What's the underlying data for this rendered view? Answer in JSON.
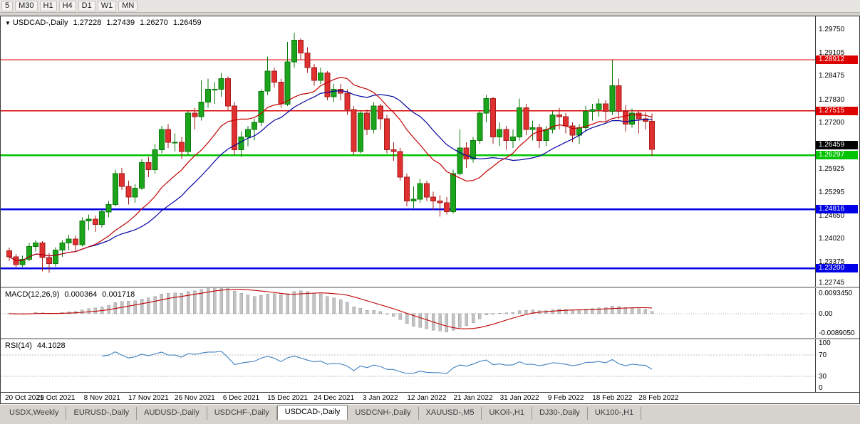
{
  "toolbar": {
    "timeframes": [
      "5",
      "M30",
      "H1",
      "H4",
      "D1",
      "W1",
      "MN"
    ]
  },
  "price_chart": {
    "collapse_icon": "▼",
    "symbol_title": "USDCAD-,Daily",
    "ohlc": {
      "open": "1.27228",
      "high": "1.27439",
      "low": "1.26270",
      "close": "1.26459"
    },
    "axis_labels": [
      "1.29750",
      "1.29105",
      "1.28475",
      "1.27830",
      "1.27200",
      "1.26570",
      "1.25925",
      "1.25295",
      "1.24650",
      "1.24020",
      "1.23375",
      "1.22745"
    ],
    "range": {
      "min": 1.227,
      "max": 1.301
    },
    "levels": [
      {
        "price": 1.28912,
        "label": "1.28912",
        "color": "#dd0000",
        "thickness": 1.4
      },
      {
        "price": 1.27515,
        "label": "1.27515",
        "color": "#dd0000",
        "thickness": 1.4
      },
      {
        "price": 1.26297,
        "label": "1.26297",
        "color": "#00c400",
        "thickness": 2.6
      },
      {
        "price": 1.24816,
        "label": "1.24816",
        "color": "#0000e6",
        "thickness": 2.2
      },
      {
        "price": 1.232,
        "label": "1.23200",
        "color": "#0000e6",
        "thickness": 2.2
      }
    ],
    "bid": {
      "price": 1.26459,
      "label": "1.26459",
      "bg": "#000000"
    },
    "colors": {
      "up": "#1ca41c",
      "up_border": "#0b7a0b",
      "down": "#e03030",
      "down_border": "#a51c1c",
      "ma_fast": "#c00000",
      "ma_slow": "#0000a0"
    },
    "ma_fast_period": 13,
    "ma_slow_period": 21,
    "candles": [
      [
        1.2368,
        1.2377,
        1.234,
        1.2352
      ],
      [
        1.2352,
        1.236,
        1.2322,
        1.233
      ],
      [
        1.233,
        1.2355,
        1.2324,
        1.2345
      ],
      [
        1.2345,
        1.239,
        1.234,
        1.238
      ],
      [
        1.238,
        1.2398,
        1.2366,
        1.239
      ],
      [
        1.239,
        1.2395,
        1.2312,
        1.235
      ],
      [
        1.235,
        1.2362,
        1.2308,
        1.2333
      ],
      [
        1.2333,
        1.2378,
        1.2325,
        1.237
      ],
      [
        1.237,
        1.2398,
        1.2352,
        1.239
      ],
      [
        1.239,
        1.2412,
        1.237,
        1.24
      ],
      [
        1.24,
        1.241,
        1.2368,
        1.2385
      ],
      [
        1.2385,
        1.246,
        1.238,
        1.245
      ],
      [
        1.245,
        1.2468,
        1.2425,
        1.2455
      ],
      [
        1.2455,
        1.2465,
        1.242,
        1.244
      ],
      [
        1.244,
        1.248,
        1.2432,
        1.2475
      ],
      [
        1.2475,
        1.2505,
        1.246,
        1.2495
      ],
      [
        1.2495,
        1.259,
        1.249,
        1.258
      ],
      [
        1.258,
        1.2595,
        1.2535,
        1.2545
      ],
      [
        1.2545,
        1.256,
        1.2495,
        1.2515
      ],
      [
        1.2515,
        1.255,
        1.25,
        1.254
      ],
      [
        1.254,
        1.262,
        1.2535,
        1.261
      ],
      [
        1.261,
        1.2625,
        1.257,
        1.259
      ],
      [
        1.259,
        1.266,
        1.258,
        1.2645
      ],
      [
        1.2645,
        1.271,
        1.2635,
        1.27
      ],
      [
        1.27,
        1.2715,
        1.265,
        1.2665
      ],
      [
        1.2665,
        1.269,
        1.264,
        1.2665
      ],
      [
        1.2665,
        1.268,
        1.262,
        1.264
      ],
      [
        1.264,
        1.275,
        1.263,
        1.2745
      ],
      [
        1.2745,
        1.276,
        1.27,
        1.2735
      ],
      [
        1.2735,
        1.2835,
        1.2725,
        1.2775
      ],
      [
        1.2775,
        1.284,
        1.276,
        1.281
      ],
      [
        1.281,
        1.283,
        1.277,
        1.281
      ],
      [
        1.281,
        1.2855,
        1.279,
        1.284
      ],
      [
        1.284,
        1.2845,
        1.275,
        1.2765
      ],
      [
        1.2765,
        1.2775,
        1.263,
        1.2645
      ],
      [
        1.2645,
        1.2695,
        1.2625,
        1.268
      ],
      [
        1.268,
        1.271,
        1.2655,
        1.27
      ],
      [
        1.27,
        1.273,
        1.267,
        1.272
      ],
      [
        1.272,
        1.281,
        1.271,
        1.2805
      ],
      [
        1.2805,
        1.29,
        1.2795,
        1.286
      ],
      [
        1.286,
        1.287,
        1.2815,
        1.283
      ],
      [
        1.283,
        1.284,
        1.276,
        1.277
      ],
      [
        1.277,
        1.294,
        1.2765,
        1.2885
      ],
      [
        1.2885,
        1.2965,
        1.287,
        1.2945
      ],
      [
        1.2945,
        1.295,
        1.289,
        1.291
      ],
      [
        1.291,
        1.2925,
        1.2855,
        1.287
      ],
      [
        1.287,
        1.288,
        1.282,
        1.2835
      ],
      [
        1.2835,
        1.287,
        1.2825,
        1.2855
      ],
      [
        1.2855,
        1.286,
        1.278,
        1.279
      ],
      [
        1.279,
        1.2825,
        1.2775,
        1.281
      ],
      [
        1.281,
        1.2825,
        1.278,
        1.28
      ],
      [
        1.28,
        1.281,
        1.274,
        1.2755
      ],
      [
        1.2755,
        1.2765,
        1.263,
        1.264
      ],
      [
        1.264,
        1.275,
        1.2635,
        1.2745
      ],
      [
        1.2745,
        1.2755,
        1.2685,
        1.27
      ],
      [
        1.27,
        1.2775,
        1.269,
        1.2765
      ],
      [
        1.2765,
        1.277,
        1.27,
        1.273
      ],
      [
        1.273,
        1.274,
        1.2635,
        1.2645
      ],
      [
        1.2645,
        1.2665,
        1.2615,
        1.264
      ],
      [
        1.264,
        1.265,
        1.256,
        1.257
      ],
      [
        1.257,
        1.258,
        1.249,
        1.2505
      ],
      [
        1.2505,
        1.2545,
        1.2485,
        1.251
      ],
      [
        1.251,
        1.2565,
        1.25,
        1.2552
      ],
      [
        1.2552,
        1.256,
        1.2505,
        1.2515
      ],
      [
        1.2515,
        1.253,
        1.248,
        1.2505
      ],
      [
        1.2505,
        1.252,
        1.2462,
        1.25
      ],
      [
        1.25,
        1.2515,
        1.2468,
        1.2475
      ],
      [
        1.2475,
        1.259,
        1.247,
        1.258
      ],
      [
        1.258,
        1.27,
        1.2575,
        1.265
      ],
      [
        1.265,
        1.2665,
        1.2595,
        1.262
      ],
      [
        1.262,
        1.268,
        1.261,
        1.267
      ],
      [
        1.267,
        1.275,
        1.266,
        1.2745
      ],
      [
        1.2745,
        1.2795,
        1.272,
        1.2785
      ],
      [
        1.2785,
        1.279,
        1.266,
        1.268
      ],
      [
        1.268,
        1.272,
        1.2655,
        1.27
      ],
      [
        1.27,
        1.271,
        1.2645,
        1.267
      ],
      [
        1.267,
        1.27,
        1.265,
        1.268
      ],
      [
        1.268,
        1.2785,
        1.267,
        1.276
      ],
      [
        1.276,
        1.277,
        1.2685,
        1.27
      ],
      [
        1.27,
        1.2725,
        1.267,
        1.2705
      ],
      [
        1.2705,
        1.2715,
        1.265,
        1.267
      ],
      [
        1.267,
        1.271,
        1.2655,
        1.27
      ],
      [
        1.27,
        1.275,
        1.269,
        1.274
      ],
      [
        1.274,
        1.276,
        1.27,
        1.2735
      ],
      [
        1.2735,
        1.2745,
        1.269,
        1.271
      ],
      [
        1.271,
        1.272,
        1.2665,
        1.2685
      ],
      [
        1.2685,
        1.2715,
        1.266,
        1.2705
      ],
      [
        1.2705,
        1.2765,
        1.2695,
        1.275
      ],
      [
        1.275,
        1.277,
        1.2725,
        1.2755
      ],
      [
        1.2755,
        1.2785,
        1.2735,
        1.277
      ],
      [
        1.277,
        1.278,
        1.272,
        1.275
      ],
      [
        1.275,
        1.289,
        1.274,
        1.282
      ],
      [
        1.282,
        1.284,
        1.273,
        1.275
      ],
      [
        1.275,
        1.2768,
        1.2695,
        1.2715
      ],
      [
        1.2715,
        1.2758,
        1.2705,
        1.2745
      ],
      [
        1.2745,
        1.2752,
        1.269,
        1.273
      ],
      [
        1.273,
        1.2748,
        1.27,
        1.2723
      ],
      [
        1.27228,
        1.27439,
        1.2627,
        1.26459
      ]
    ]
  },
  "macd": {
    "name": "MACD(12,26,9)",
    "value": "0.000364",
    "signal_value": "0.001718",
    "axis_labels": [
      "0.0093450",
      "0.00",
      "-0.0089050"
    ],
    "range": {
      "min": -0.008905,
      "max": 0.009345
    },
    "fast": 12,
    "slow": 26,
    "signal": 9,
    "colors": {
      "histogram": "#c3c3c3",
      "histogram_border": "#9b9b9b",
      "signal": "#c00000"
    }
  },
  "rsi": {
    "name": "RSI(14)",
    "value": "44.1028",
    "axis_labels": [
      "100",
      "70",
      "30",
      "0"
    ],
    "levels": [
      70,
      30
    ],
    "period": 14,
    "color": "#4080c0",
    "range": {
      "min": 0,
      "max": 100
    }
  },
  "date_axis": {
    "step": 7,
    "labels": [
      "20 Oct 2021",
      "29 Oct 2021",
      "8 Nov 2021",
      "17 Nov 2021",
      "26 Nov 2021",
      "6 Dec 2021",
      "15 Dec 2021",
      "24 Dec 2021",
      "3 Jan 2022",
      "12 Jan 2022",
      "21 Jan 2022",
      "31 Jan 2022",
      "9 Feb 2022",
      "18 Feb 2022",
      "28 Feb 2022"
    ]
  },
  "tabs": [
    {
      "label": "USDX,Weekly",
      "active": false
    },
    {
      "label": "EURUSD-,Daily",
      "active": false
    },
    {
      "label": "AUDUSD-,Daily",
      "active": false
    },
    {
      "label": "USDCHF-,Daily",
      "active": false
    },
    {
      "label": "USDCAD-,Daily",
      "active": true
    },
    {
      "label": "USDCNH-,Daily",
      "active": false
    },
    {
      "label": "XAUUSD-,M5",
      "active": false
    },
    {
      "label": "UKOil-,H1",
      "active": false
    },
    {
      "label": "DJ30-,Daily",
      "active": false
    },
    {
      "label": "UK100-,H1",
      "active": false
    }
  ]
}
